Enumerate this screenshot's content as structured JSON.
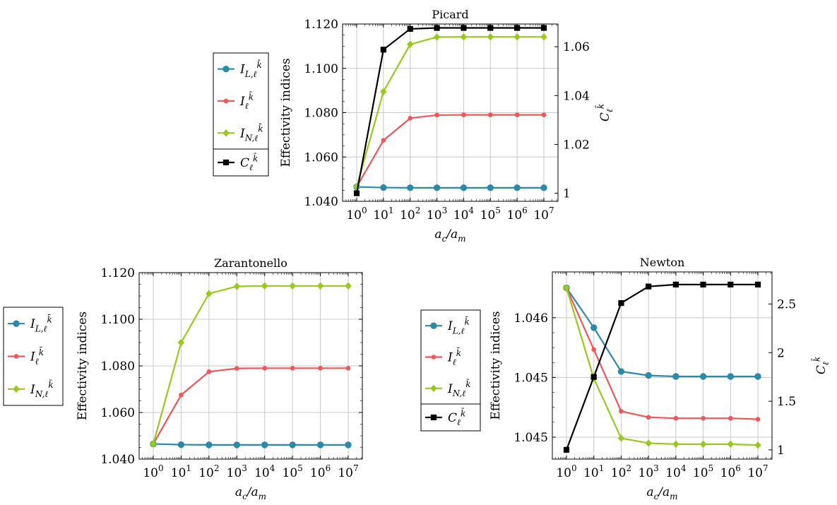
{
  "chart_data": [
    {
      "id": "picard",
      "type": "line",
      "title": "Picard",
      "x": [
        1,
        10,
        100,
        1000,
        10000,
        100000,
        1000000,
        10000000
      ],
      "x_ticks": [
        "10^0",
        "10^1",
        "10^2",
        "10^3",
        "10^4",
        "10^5",
        "10^6",
        "10^7"
      ],
      "xlabel": "a_c/a_m",
      "xscale": "log",
      "ylabel": "Effectivity indices",
      "ylim": [
        1.04,
        1.12
      ],
      "y_ticks": [
        "1.040",
        "1.060",
        "1.080",
        "1.100",
        "1.120"
      ],
      "y2label": "C_ℓ^k̄",
      "y2lim": [
        0.9967,
        1.0693
      ],
      "y2_ticks": [
        "1",
        "1.02",
        "1.04",
        "1.06"
      ],
      "grid": true,
      "legend": "left-outside",
      "series": [
        {
          "name": "I_{L,ℓ}^k̄",
          "axis": "left",
          "color": "#2a8aa8",
          "marker": "circle",
          "values": [
            1.0465,
            1.0462,
            1.0461,
            1.0461,
            1.0461,
            1.0461,
            1.0461,
            1.0461
          ]
        },
        {
          "name": "I_ℓ^k̄",
          "axis": "left",
          "color": "#f0555a",
          "marker": "dot",
          "values": [
            1.0465,
            1.0675,
            1.0775,
            1.0789,
            1.079,
            1.079,
            1.079,
            1.079
          ]
        },
        {
          "name": "I_{N,ℓ}^k̄",
          "axis": "left",
          "color": "#99c81e",
          "marker": "diamond",
          "values": [
            1.0465,
            1.0895,
            1.1108,
            1.1141,
            1.1142,
            1.1142,
            1.1142,
            1.1142
          ]
        },
        {
          "name": "C_ℓ^k̄",
          "axis": "right",
          "color": "#000000",
          "marker": "square",
          "values": [
            1.0,
            1.0588,
            1.0673,
            1.0677,
            1.0677,
            1.0677,
            1.0677,
            1.0677
          ]
        }
      ]
    },
    {
      "id": "zarantonello",
      "type": "line",
      "title": "Zarantonello",
      "x": [
        1,
        10,
        100,
        1000,
        10000,
        100000,
        1000000,
        10000000
      ],
      "x_ticks": [
        "10^0",
        "10^1",
        "10^2",
        "10^3",
        "10^4",
        "10^5",
        "10^6",
        "10^7"
      ],
      "xlabel": "a_c/a_m",
      "xscale": "log",
      "ylabel": "Effectivity indices",
      "ylim": [
        1.04,
        1.12
      ],
      "y_ticks": [
        "1.040",
        "1.060",
        "1.080",
        "1.100",
        "1.120"
      ],
      "grid": true,
      "legend": "left-outside",
      "series": [
        {
          "name": "I_{L,ℓ}^k̄",
          "axis": "left",
          "color": "#2a8aa8",
          "marker": "circle",
          "values": [
            1.0465,
            1.0462,
            1.0461,
            1.0461,
            1.0461,
            1.0461,
            1.0461,
            1.0461
          ]
        },
        {
          "name": "I_ℓ^k̄",
          "axis": "left",
          "color": "#f0555a",
          "marker": "dot",
          "values": [
            1.0465,
            1.0675,
            1.0775,
            1.0789,
            1.079,
            1.079,
            1.079,
            1.079
          ]
        },
        {
          "name": "I_{N,ℓ}^k̄",
          "axis": "left",
          "color": "#99c81e",
          "marker": "diamond",
          "values": [
            1.0465,
            1.09,
            1.111,
            1.1141,
            1.1143,
            1.1143,
            1.1143,
            1.1143
          ]
        }
      ]
    },
    {
      "id": "newton",
      "type": "line",
      "title": "Newton",
      "x": [
        1,
        10,
        100,
        1000,
        10000,
        100000,
        1000000,
        10000000
      ],
      "x_ticks": [
        "10^0",
        "10^1",
        "10^2",
        "10^3",
        "10^4",
        "10^5",
        "10^6",
        "10^7"
      ],
      "xlabel": "a_c/a_m",
      "xscale": "log",
      "ylabel": "Effectivity indices",
      "ylim": [
        1.04448,
        1.04636
      ],
      "y_ticks": [
        "1.045",
        "1.045",
        "1.046"
      ],
      "y_tick_values": [
        1.0447,
        1.0453,
        1.0459
      ],
      "y2label": "C_ℓ^k̄",
      "y2lim": [
        0.905,
        2.83
      ],
      "y2_ticks": [
        "1",
        "1.5",
        "2",
        "2.5"
      ],
      "grid": true,
      "legend": "left-outside",
      "series": [
        {
          "name": "I_{L,ℓ}^k̄",
          "axis": "left",
          "color": "#2a8aa8",
          "marker": "circle",
          "values": [
            1.0462,
            1.0458,
            1.04536,
            1.04532,
            1.04531,
            1.04531,
            1.04531,
            1.04531
          ]
        },
        {
          "name": "I_ℓ^k̄",
          "axis": "left",
          "color": "#f0555a",
          "marker": "dot",
          "values": [
            1.0462,
            1.04558,
            1.04496,
            1.0449,
            1.04489,
            1.04489,
            1.04489,
            1.04488
          ]
        },
        {
          "name": "I_{N,ℓ}^k̄",
          "axis": "left",
          "color": "#99c81e",
          "marker": "diamond",
          "values": [
            1.0462,
            1.04529,
            1.04469,
            1.04464,
            1.04463,
            1.04463,
            1.04463,
            1.04462
          ]
        },
        {
          "name": "C_ℓ^k̄",
          "axis": "right",
          "color": "#000000",
          "marker": "square",
          "values": [
            1.0,
            1.75,
            2.51,
            2.68,
            2.7,
            2.7,
            2.7,
            2.7
          ]
        }
      ]
    }
  ]
}
